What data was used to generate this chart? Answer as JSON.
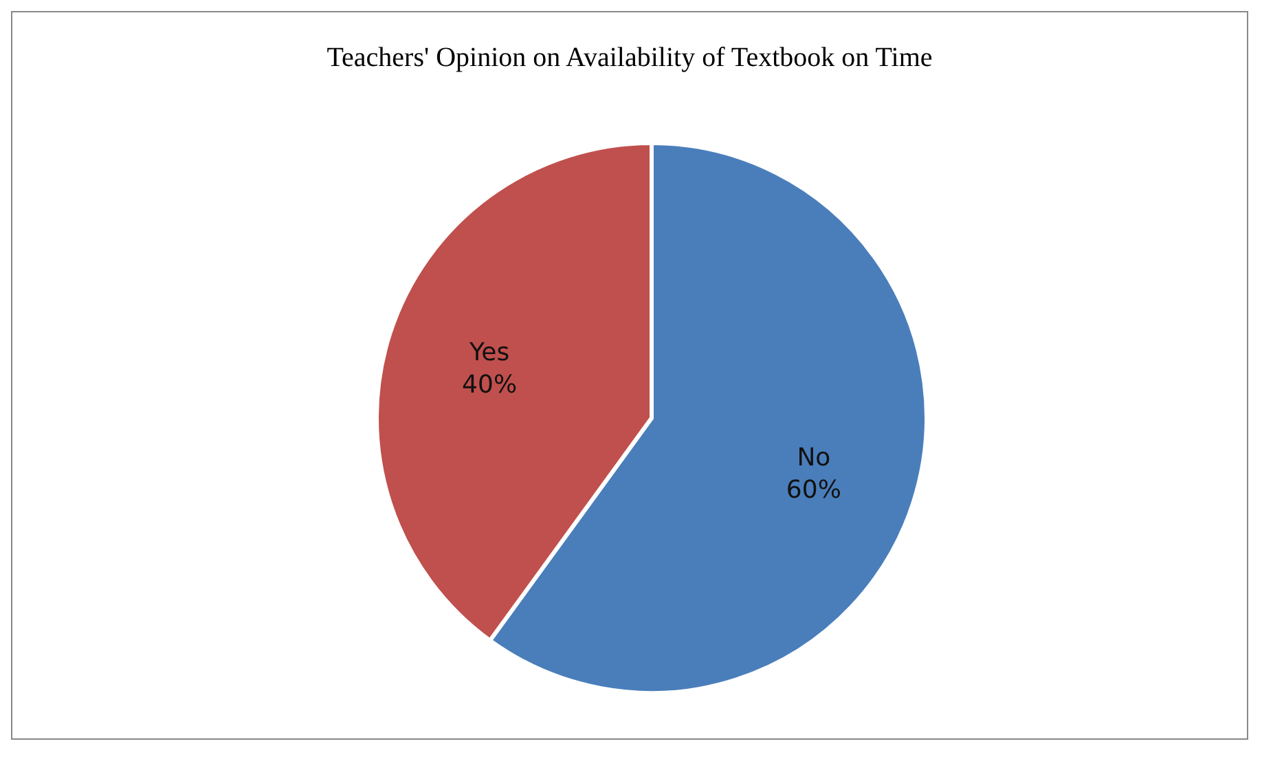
{
  "chart_data": {
    "type": "pie",
    "title": "Teachers' Opinion on Availability of Textbook on Time",
    "categories": [
      "No",
      "Yes"
    ],
    "values": [
      60,
      40
    ],
    "colors": [
      "#4a7ebb",
      "#c0504d"
    ],
    "value_labels": [
      "60%",
      "40%"
    ],
    "legend": false
  }
}
